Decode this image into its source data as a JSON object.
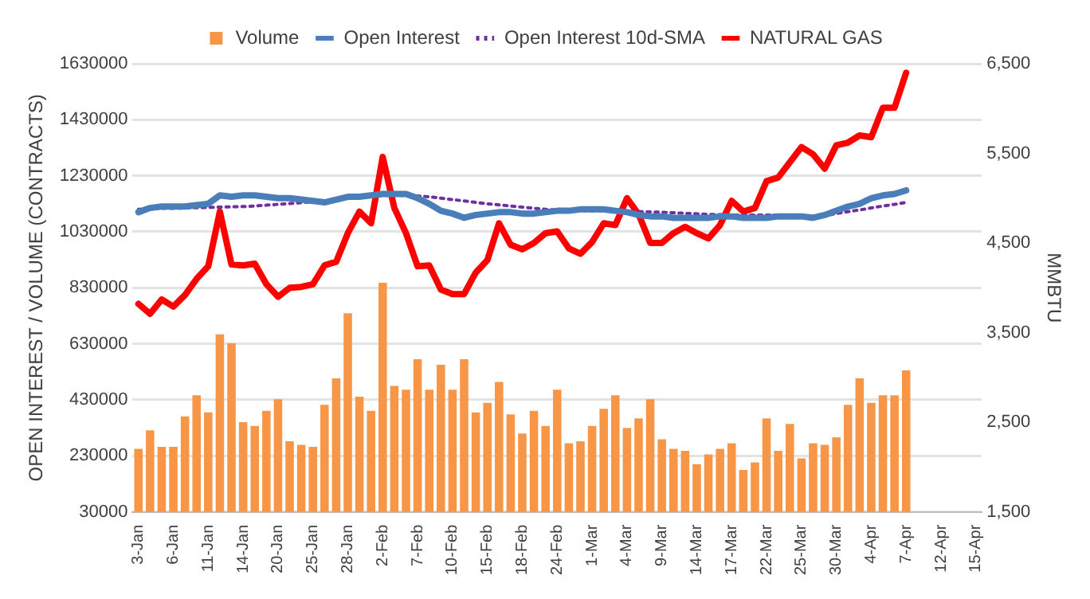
{
  "chart_data": {
    "type": "bar",
    "ylabel": "OPEN INTEREST / VOLUME (CONTRACTS)",
    "y2label": "MMBTU",
    "categories": [
      "3-Jan",
      null,
      null,
      "6-Jan",
      null,
      null,
      "11-Jan",
      null,
      null,
      "14-Jan",
      null,
      null,
      "20-Jan",
      null,
      null,
      "25-Jan",
      null,
      null,
      "28-Jan",
      null,
      null,
      "2-Feb",
      null,
      null,
      "7-Feb",
      null,
      null,
      "10-Feb",
      null,
      null,
      "15-Feb",
      null,
      null,
      "18-Feb",
      null,
      null,
      "24-Feb",
      null,
      null,
      "1-Mar",
      null,
      null,
      "4-Mar",
      null,
      null,
      "9-Mar",
      null,
      null,
      "14-Mar",
      null,
      null,
      "17-Mar",
      null,
      null,
      "22-Mar",
      null,
      null,
      "25-Mar",
      null,
      null,
      "30-Mar",
      null,
      null,
      "4-Apr",
      null,
      null,
      "7-Apr",
      null,
      null,
      "12-Apr",
      null,
      null,
      "15-Apr"
    ],
    "series": [
      {
        "name": "Volume",
        "color": "#f79646",
        "values": [
          255000,
          321000,
          262000,
          262000,
          371000,
          446000,
          385000,
          664000,
          632000,
          350000,
          337000,
          391000,
          432000,
          282000,
          269000,
          262000,
          412000,
          507000,
          739000,
          441000,
          391000,
          848000,
          480000,
          466000,
          575000,
          466000,
          555000,
          466000,
          575000,
          385000,
          419000,
          494000,
          378000,
          310000,
          391000,
          337000,
          466000,
          275000,
          282000,
          337000,
          398000,
          446000,
          330000,
          364000,
          432000,
          289000,
          255000,
          248000,
          200000,
          235000,
          255000,
          275000,
          180000,
          207000,
          364000,
          248000,
          344000,
          221000,
          275000,
          269000,
          296000,
          412000,
          507000,
          419000,
          446000,
          446000,
          535000,
          null,
          null,
          null,
          null,
          null,
          null
        ]
      },
      {
        "name": "Open Interest",
        "type": "line",
        "color": "#4a7ebb",
        "line_style": "solid",
        "values": [
          1100000,
          1115000,
          1120000,
          1120000,
          1120000,
          1125000,
          1130000,
          1160000,
          1155000,
          1160000,
          1160000,
          1155000,
          1150000,
          1150000,
          1145000,
          1140000,
          1135000,
          1145000,
          1155000,
          1155000,
          1160000,
          1165000,
          1165000,
          1165000,
          1150000,
          1130000,
          1105000,
          1095000,
          1080000,
          1090000,
          1095000,
          1100000,
          1100000,
          1095000,
          1095000,
          1100000,
          1105000,
          1105000,
          1110000,
          1110000,
          1110000,
          1105000,
          1100000,
          1090000,
          1085000,
          1085000,
          1080000,
          1080000,
          1080000,
          1080000,
          1085000,
          1085000,
          1080000,
          1080000,
          1080000,
          1085000,
          1085000,
          1085000,
          1080000,
          1090000,
          1105000,
          1120000,
          1130000,
          1150000,
          1160000,
          1165000,
          1178000,
          null,
          null,
          null,
          null,
          null,
          null
        ]
      },
      {
        "name": "Open Interest 10d-SMA",
        "type": "line",
        "color": "#7030a0",
        "line_style": "dotted",
        "values": [
          1110000,
          1112000,
          1114000,
          1114000,
          1115000,
          1116000,
          1117000,
          1118000,
          1119000,
          1120000,
          1122000,
          1125000,
          1128000,
          1131000,
          1134000,
          1137000,
          1140000,
          1145000,
          1150000,
          1155000,
          1158000,
          1160000,
          1160000,
          1160000,
          1158000,
          1155000,
          1150000,
          1145000,
          1140000,
          1135000,
          1130000,
          1126000,
          1122000,
          1118000,
          1114000,
          1110000,
          1108000,
          1106000,
          1105000,
          1105000,
          1105000,
          1104000,
          1103000,
          1102000,
          1101000,
          1100000,
          1098000,
          1096000,
          1094000,
          1092000,
          1091000,
          1090000,
          1090000,
          1090000,
          1090000,
          1090000,
          1088000,
          1086000,
          1085000,
          1088000,
          1095000,
          1102000,
          1108000,
          1115000,
          1122000,
          1128000,
          1135000,
          null,
          null,
          null,
          null,
          null,
          null
        ]
      },
      {
        "name": "NATURAL GAS",
        "type": "line",
        "axis": "y2",
        "color": "#ff0000",
        "line_style": "solid",
        "values": [
          3820,
          3710,
          3870,
          3790,
          3920,
          4100,
          4240,
          4850,
          4260,
          4250,
          4270,
          4040,
          3900,
          4000,
          4010,
          4040,
          4250,
          4290,
          4610,
          4850,
          4720,
          5460,
          4890,
          4610,
          4240,
          4250,
          3980,
          3930,
          3930,
          4170,
          4310,
          4720,
          4480,
          4430,
          4500,
          4610,
          4630,
          4440,
          4380,
          4510,
          4720,
          4700,
          5000,
          4820,
          4500,
          4500,
          4610,
          4680,
          4610,
          4550,
          4700,
          4970,
          4850,
          4890,
          5190,
          5230,
          5400,
          5570,
          5490,
          5330,
          5590,
          5620,
          5700,
          5680,
          6010,
          6010,
          6400,
          null,
          null,
          null,
          null,
          null,
          null
        ]
      }
    ],
    "ylim": [
      30000,
      1630000
    ],
    "yticks": [
      30000,
      230000,
      430000,
      630000,
      830000,
      1030000,
      1230000,
      1430000,
      1630000
    ],
    "y2lim": [
      1500,
      6500
    ],
    "y2ticks": [
      {
        "value": 1500,
        "label": "1,500"
      },
      {
        "value": 2500,
        "label": "2,500"
      },
      {
        "value": 3500,
        "label": "3,500"
      },
      {
        "value": 4500,
        "label": "4,500"
      },
      {
        "value": 5500,
        "label": "5,500"
      },
      {
        "value": 6500,
        "label": "6,500"
      }
    ],
    "grid": "y",
    "legend": "top",
    "marker": "none"
  }
}
